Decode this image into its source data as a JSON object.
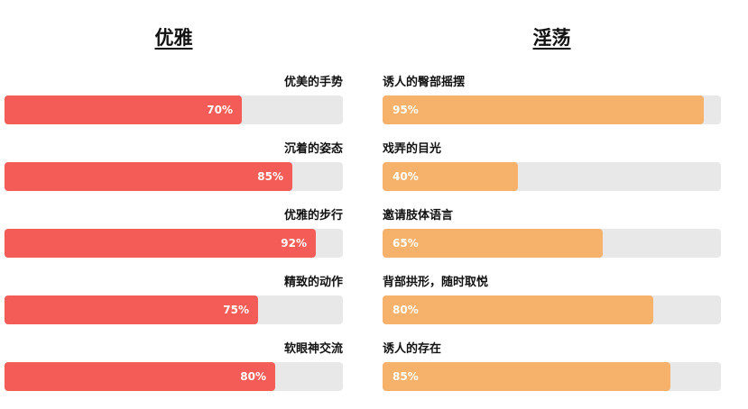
{
  "colors": {
    "left_bar": "#f45d57",
    "right_bar": "#f6b26b",
    "track": "#e8e8e8"
  },
  "chart_data": [
    {
      "type": "bar",
      "orientation": "horizontal",
      "title": "优雅",
      "categories": [
        "优美的手势",
        "沉着的姿态",
        "优雅的步行",
        "精致的动作",
        "软眼神交流"
      ],
      "values": [
        70,
        85,
        92,
        75,
        80
      ],
      "value_labels": [
        "70%",
        "85%",
        "92%",
        "75%",
        "80%"
      ],
      "xlim": [
        0,
        100
      ],
      "unit": "%",
      "grid": false,
      "color": "#f45d57"
    },
    {
      "type": "bar",
      "orientation": "horizontal",
      "title": "淫荡",
      "categories": [
        "诱人的臀部摇摆",
        "戏弄的目光",
        "邀请肢体语言",
        "背部拱形，随时取悦",
        "诱人的存在"
      ],
      "values": [
        95,
        40,
        65,
        80,
        85
      ],
      "value_labels": [
        "95%",
        "40%",
        "65%",
        "80%",
        "85%"
      ],
      "xlim": [
        0,
        100
      ],
      "unit": "%",
      "grid": false,
      "color": "#f6b26b"
    }
  ]
}
